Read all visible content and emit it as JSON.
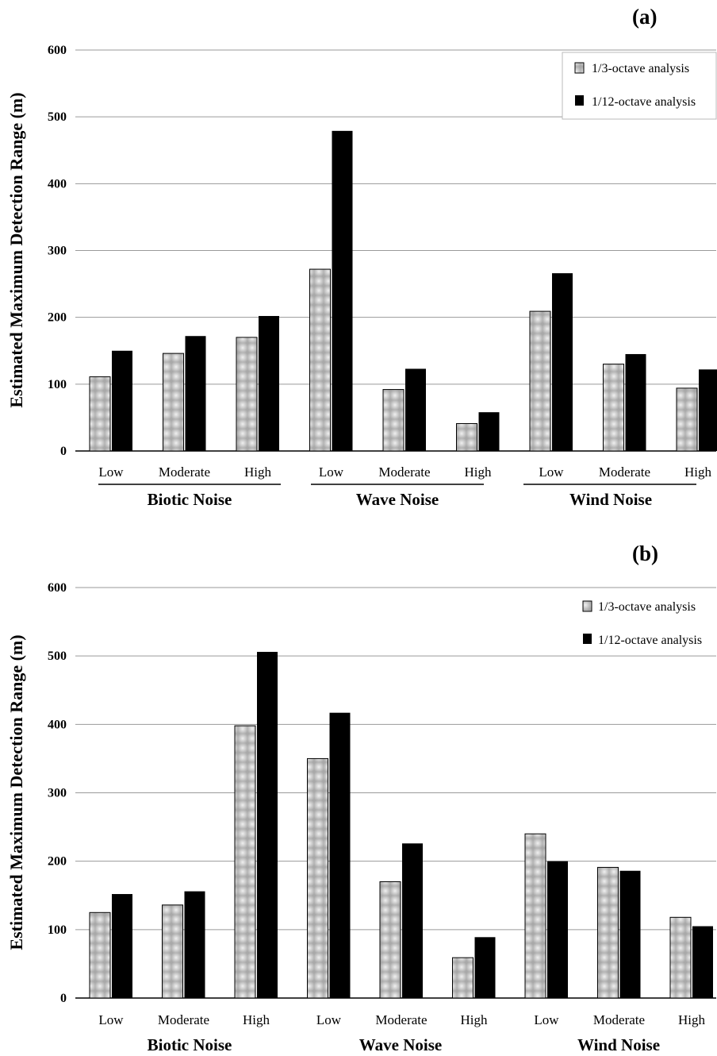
{
  "chart_data": [
    {
      "panel": "(a)",
      "type": "bar",
      "ylabel": "Estimated Maximum Detection Range (m)",
      "ylim": [
        0,
        600
      ],
      "yticks": [
        0,
        100,
        200,
        300,
        400,
        500,
        600
      ],
      "grid": true,
      "legend_position": "top-right",
      "categories": [
        "Low",
        "Moderate",
        "High",
        "Low",
        "Moderate",
        "High",
        "Low",
        "Moderate",
        "High"
      ],
      "groups": [
        "Biotic Noise",
        "Wave Noise",
        "Wind Noise"
      ],
      "series": [
        {
          "name": "1/3-octave analysis",
          "values": [
            111,
            146,
            170,
            272,
            92,
            41,
            209,
            130,
            94
          ]
        },
        {
          "name": "1/12-octave analysis",
          "values": [
            150,
            172,
            202,
            479,
            123,
            58,
            266,
            145,
            122
          ]
        }
      ]
    },
    {
      "panel": "(b)",
      "type": "bar",
      "ylabel": "Estimated Maximum Detection Range (m)",
      "ylim": [
        0,
        600
      ],
      "yticks": [
        0,
        100,
        200,
        300,
        400,
        500,
        600
      ],
      "grid": true,
      "legend_position": "top-right",
      "categories": [
        "Low",
        "Moderate",
        "High",
        "Low",
        "Moderate",
        "High",
        "Low",
        "Moderate",
        "High"
      ],
      "groups": [
        "Biotic Noise",
        "Wave Noise",
        "Wind Noise"
      ],
      "series": [
        {
          "name": "1/3-octave analysis",
          "values": [
            125,
            136,
            398,
            350,
            170,
            59,
            240,
            191,
            118
          ]
        },
        {
          "name": "1/12-octave analysis",
          "values": [
            152,
            156,
            506,
            417,
            226,
            89,
            200,
            186,
            105
          ]
        }
      ]
    }
  ]
}
